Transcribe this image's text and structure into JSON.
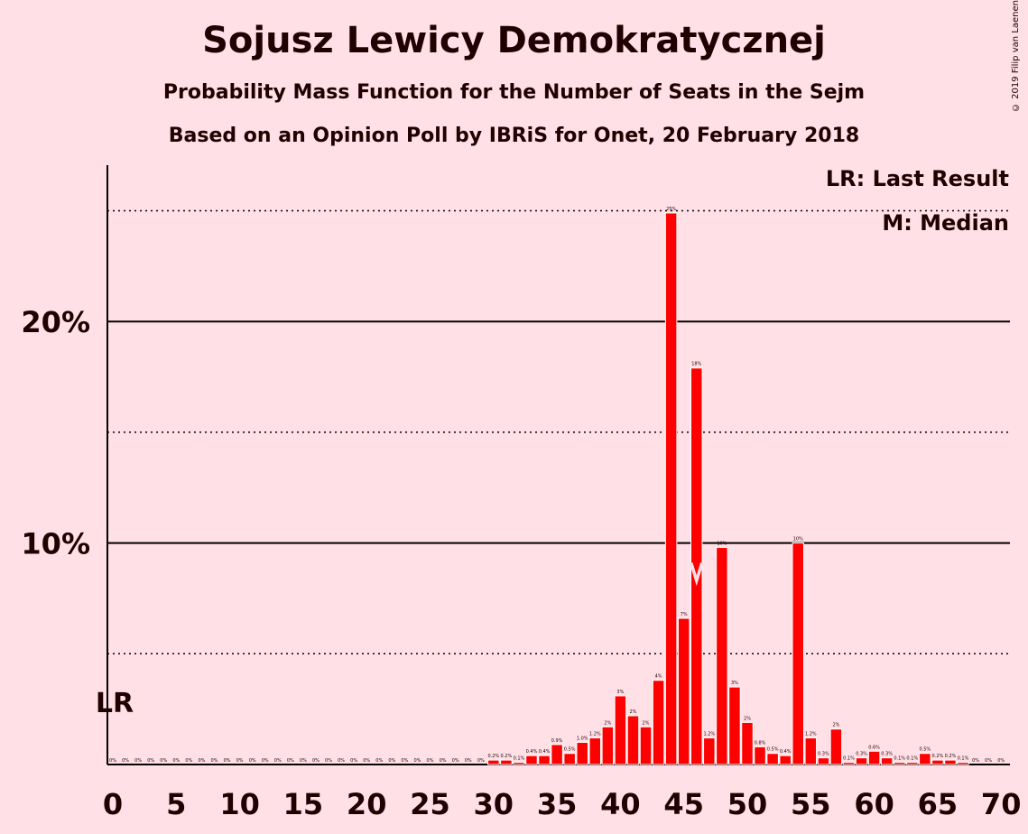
{
  "title": "Sojusz Lewicy Demokratycznej",
  "subtitle1": "Probability Mass Function for the Number of Seats in the Sejm",
  "subtitle2": "Based on an Opinion Poll by IBRiS for Onet, 20 February 2018",
  "copyright": "© 2019 Filip van Laenen",
  "legend": {
    "lr": "LR: Last Result",
    "median": "M: Median"
  },
  "markers": {
    "last_result_label": "LR",
    "last_result_seat": 0,
    "median_label": "M",
    "median_seat": 46
  },
  "colors": {
    "background": "#ffe0e6",
    "bar": "#ff0000",
    "bar_outline": "#ffffff",
    "text": "#200000"
  },
  "chart_data": {
    "type": "bar",
    "x": [
      0,
      1,
      2,
      3,
      4,
      5,
      6,
      7,
      8,
      9,
      10,
      11,
      12,
      13,
      14,
      15,
      16,
      17,
      18,
      19,
      20,
      21,
      22,
      23,
      24,
      25,
      26,
      27,
      28,
      29,
      30,
      31,
      32,
      33,
      34,
      35,
      36,
      37,
      38,
      39,
      40,
      41,
      42,
      43,
      44,
      45,
      46,
      47,
      48,
      49,
      50,
      51,
      52,
      53,
      54,
      55,
      56,
      57,
      58,
      59,
      60,
      61,
      62,
      63,
      64,
      65,
      66,
      67,
      68,
      69,
      70
    ],
    "values": [
      0,
      0,
      0,
      0,
      0,
      0,
      0,
      0,
      0,
      0,
      0,
      0,
      0,
      0,
      0,
      0,
      0,
      0,
      0,
      0,
      0,
      0,
      0,
      0,
      0,
      0,
      0,
      0,
      0,
      0,
      0.2,
      0.2,
      0.1,
      0.4,
      0.4,
      0.9,
      0.5,
      1.0,
      1.2,
      1.7,
      3.1,
      2.2,
      1.7,
      3.8,
      24.9,
      6.6,
      17.9,
      1.2,
      9.8,
      3.5,
      1.9,
      0.8,
      0.5,
      0.4,
      10.0,
      1.2,
      0.3,
      1.6,
      0.1,
      0.3,
      0.6,
      0.3,
      0.1,
      0.1,
      0.5,
      0.2,
      0.2,
      0.1,
      0,
      0,
      0
    ],
    "labels": [
      "0%",
      "0%",
      "0%",
      "0%",
      "0%",
      "0%",
      "0%",
      "0%",
      "0%",
      "0%",
      "0%",
      "0%",
      "0%",
      "0%",
      "0%",
      "0%",
      "0%",
      "0%",
      "0%",
      "0%",
      "0%",
      "0%",
      "0%",
      "0%",
      "0%",
      "0%",
      "0%",
      "0%",
      "0%",
      "0%",
      "0.2%",
      "0.2%",
      "0.1%",
      "0.4%",
      "0.4%",
      "0.9%",
      "0.5%",
      "1.0%",
      "1.2%",
      "2%",
      "3%",
      "2%",
      "2%",
      "4%",
      "25%",
      "7%",
      "18%",
      "1.2%",
      "10%",
      "3%",
      "2%",
      "0.8%",
      "0.5%",
      "0.4%",
      "10%",
      "1.2%",
      "0.3%",
      "2%",
      "0.1%",
      "0.3%",
      "0.6%",
      "0.3%",
      "0.1%",
      "0.1%",
      "0.5%",
      "0.2%",
      "0.2%",
      "0.1%",
      "0%",
      "0%",
      "0%"
    ],
    "x_ticks": [
      "0",
      "5",
      "10",
      "15",
      "20",
      "25",
      "30",
      "35",
      "40",
      "45",
      "50",
      "55",
      "60",
      "65",
      "70"
    ],
    "y_ticks": [
      {
        "value": 5,
        "label": "",
        "style": "dotted"
      },
      {
        "value": 10,
        "label": "10%",
        "style": "solid"
      },
      {
        "value": 15,
        "label": "",
        "style": "dotted"
      },
      {
        "value": 20,
        "label": "20%",
        "style": "solid"
      },
      {
        "value": 25,
        "label": "",
        "style": "dotted"
      }
    ],
    "xlim": [
      0,
      70
    ],
    "ylim": [
      0,
      27.2
    ]
  }
}
